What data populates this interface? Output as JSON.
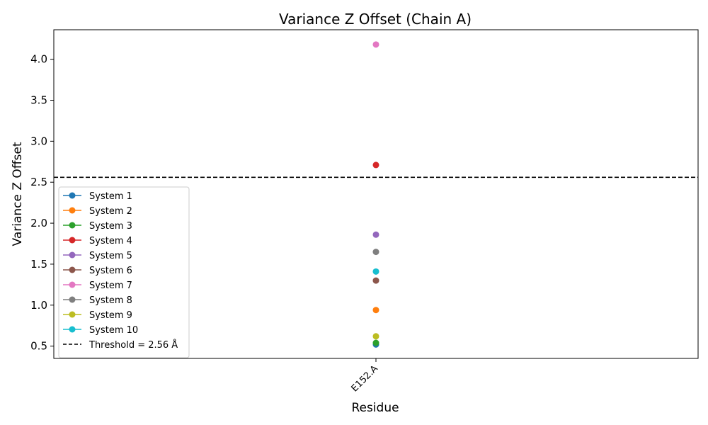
{
  "chart_data": {
    "type": "scatter",
    "title": "Variance Z Offset (Chain A)",
    "xlabel": "Residue",
    "ylabel": "Variance Z Offset",
    "categories": [
      "E152.A"
    ],
    "ylim": [
      0.35,
      4.36
    ],
    "yticks": [
      0.5,
      1.0,
      1.5,
      2.0,
      2.5,
      3.0,
      3.5,
      4.0
    ],
    "ytick_labels": [
      "0.5",
      "1.0",
      "1.5",
      "2.0",
      "2.5",
      "3.0",
      "3.5",
      "4.0"
    ],
    "grid": false,
    "legend_position": "lower-left",
    "series": [
      {
        "name": "System 1",
        "color": "#1f77b4",
        "values": [
          0.52
        ]
      },
      {
        "name": "System 2",
        "color": "#ff7f0e",
        "values": [
          0.94
        ]
      },
      {
        "name": "System 3",
        "color": "#2ca02c",
        "values": [
          0.54
        ]
      },
      {
        "name": "System 4",
        "color": "#d62728",
        "values": [
          2.71
        ]
      },
      {
        "name": "System 5",
        "color": "#9467bd",
        "values": [
          1.86
        ]
      },
      {
        "name": "System 6",
        "color": "#8c564b",
        "values": [
          1.3
        ]
      },
      {
        "name": "System 7",
        "color": "#e377c2",
        "values": [
          4.18
        ]
      },
      {
        "name": "System 8",
        "color": "#7f7f7f",
        "values": [
          1.65
        ]
      },
      {
        "name": "System 9",
        "color": "#bcbd22",
        "values": [
          0.62
        ]
      },
      {
        "name": "System 10",
        "color": "#17becf",
        "values": [
          1.41
        ]
      }
    ],
    "threshold": {
      "label": "Threshold = 2.56 Å",
      "value": 2.56,
      "color": "#000000"
    }
  }
}
